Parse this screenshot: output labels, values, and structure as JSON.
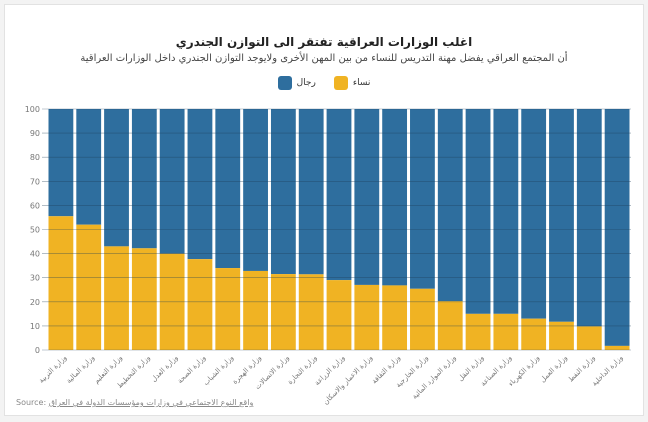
{
  "chart_data": {
    "type": "bar",
    "stacked": true,
    "title": "اغلب الوزارات العراقية تفتقر الى التوازن الجندري",
    "subtitle": "أن المجتمع العراقي يفضل مهنة التدريس للنساء من بين المهن الأخرى ولايوجد التوازن الجندري داخل الوزارات العراقية",
    "xlabel": "",
    "ylabel": "",
    "ylim": [
      0,
      100
    ],
    "yticks": [
      0,
      10,
      20,
      30,
      40,
      50,
      60,
      70,
      80,
      90,
      100
    ],
    "grid": true,
    "legend_position": "top-center",
    "categories": [
      "وزارة التربية",
      "وزارة المالية",
      "وزارة التعليم",
      "وزارة التخطيط",
      "وزارة العدل",
      "وزارة الصحة",
      "وزارة الشباب",
      "وزارة الهجرة",
      "وزارة الاتصالات",
      "وزارة التجارة",
      "وزارة الزراعة",
      "وزارة الاعمار والاسكان",
      "وزارة الثقافة",
      "وزارة الخارجية",
      "وزارة الموارد المائية",
      "وزارة النقل",
      "وزارة الصناعة",
      "وزارة الكهرباء",
      "وزارة العمل",
      "وزارة النفط",
      "وزارة الداخلية"
    ],
    "series": [
      {
        "name": "نساء",
        "color": "#f0b323",
        "values": [
          55.5,
          52,
          43,
          42.2,
          40,
          37.7,
          34,
          32.8,
          31.5,
          31.4,
          29,
          27,
          26.8,
          25.4,
          20.3,
          15,
          15,
          13,
          11.7,
          9.8,
          1.7
        ]
      },
      {
        "name": "رجال",
        "color": "#2e6e9e",
        "values": [
          44.5,
          48,
          57,
          57.8,
          60,
          62.3,
          66,
          67.2,
          68.5,
          68.6,
          71,
          73,
          73.2,
          74.6,
          79.7,
          85,
          85,
          87,
          88.3,
          90.2,
          98.3
        ]
      }
    ]
  },
  "source": {
    "label": "Source:",
    "text": "واقع النوع الاجتماعي في وزارات ومؤسسات الدولة في العراق"
  }
}
